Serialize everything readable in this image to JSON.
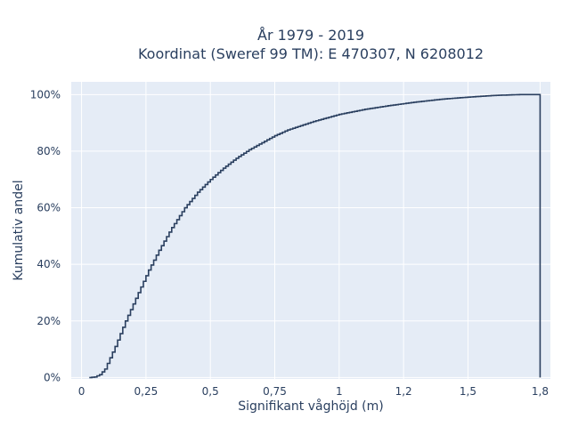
{
  "chart_data": {
    "type": "line",
    "title_lines": [
      "År 1979 - 2019",
      "Koordinat (Sweref 99 TM): E 470307, N 6208012"
    ],
    "xlabel": "Signifikant våghöjd (m)",
    "ylabel": "Kumulativ andel",
    "x_ticks": [
      0,
      0.25,
      0.5,
      0.75,
      1,
      1.25,
      1.5,
      1.78
    ],
    "x_tick_labels": [
      "0",
      "0,25",
      "0,5",
      "0,75",
      "1",
      "1,2",
      "1,5",
      "1,8"
    ],
    "y_ticks": [
      0,
      0.2,
      0.4,
      0.6,
      0.8,
      1.0
    ],
    "y_tick_labels": [
      "0%",
      "20%",
      "40%",
      "60%",
      "80%",
      "100%"
    ],
    "xlim": [
      -0.04,
      1.82
    ],
    "ylim": [
      -0.005,
      1.045
    ],
    "line_color": "#2a3f5f",
    "plot_bg": "#e5ecf6",
    "grid": true,
    "series": [
      {
        "x": [
          0.03,
          0.05,
          0.07,
          0.09,
          0.11,
          0.13,
          0.15,
          0.17,
          0.2,
          0.23,
          0.26,
          0.3,
          0.35,
          0.4,
          0.45,
          0.5,
          0.55,
          0.6,
          0.65,
          0.7,
          0.75,
          0.8,
          0.9,
          1.0,
          1.1,
          1.2,
          1.3,
          1.4,
          1.5,
          1.6,
          1.7,
          1.78,
          1.78
        ],
        "y": [
          0.0,
          0.002,
          0.01,
          0.03,
          0.07,
          0.11,
          0.155,
          0.2,
          0.26,
          0.32,
          0.38,
          0.45,
          0.53,
          0.6,
          0.655,
          0.7,
          0.74,
          0.775,
          0.805,
          0.83,
          0.855,
          0.875,
          0.905,
          0.93,
          0.948,
          0.962,
          0.974,
          0.984,
          0.991,
          0.997,
          1.0,
          1.0,
          0.0
        ]
      }
    ]
  }
}
